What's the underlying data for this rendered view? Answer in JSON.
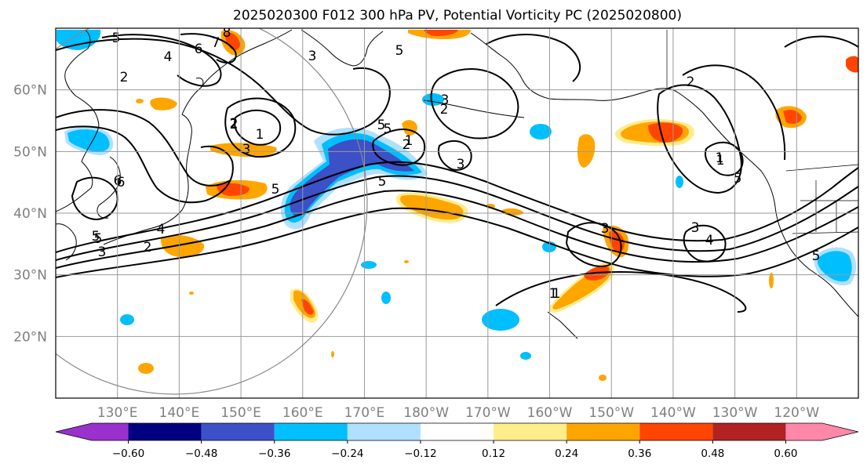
{
  "title": "2025020300 F012 300 hPa PV, Potential Vorticity PC (2025020800)",
  "map": {
    "lon_range": [
      120,
      250
    ],
    "lat_range": [
      10,
      70
    ],
    "lat_ticks": [
      {
        "value": 20,
        "label": "20°N"
      },
      {
        "value": 30,
        "label": "30°N"
      },
      {
        "value": 40,
        "label": "40°N"
      },
      {
        "value": 50,
        "label": "50°N"
      },
      {
        "value": 60,
        "label": "60°N"
      }
    ],
    "lon_ticks": [
      {
        "value": 130,
        "label": "130°E"
      },
      {
        "value": 140,
        "label": "140°E"
      },
      {
        "value": 150,
        "label": "150°E"
      },
      {
        "value": 160,
        "label": "160°E"
      },
      {
        "value": 170,
        "label": "170°E"
      },
      {
        "value": 180,
        "label": "180°W"
      },
      {
        "value": 190,
        "label": "170°W"
      },
      {
        "value": 200,
        "label": "160°W"
      },
      {
        "value": 210,
        "label": "150°W"
      },
      {
        "value": 220,
        "label": "140°W"
      },
      {
        "value": 230,
        "label": "130°W"
      },
      {
        "value": 240,
        "label": "120°W"
      }
    ],
    "gridlines": true
  },
  "colorbar": {
    "ticks": [
      "−0.60",
      "−0.48",
      "−0.36",
      "−0.24",
      "−0.12",
      "0.12",
      "0.24",
      "0.36",
      "0.48",
      "0.60"
    ],
    "colors": [
      "#9932cc",
      "#000080",
      "#3c50c8",
      "#00bfff",
      "#afe0ff",
      "#ffffff",
      "#ffec8b",
      "#ffa500",
      "#ff4500",
      "#b22222",
      "#ff88aa"
    ],
    "extend": "both"
  },
  "colors": {
    "strong_negative": "#3c50c8",
    "negative": "#00bfff",
    "weak_negative": "#afe0ff",
    "weak_positive": "#ffec8b",
    "positive": "#ffa500",
    "strong_positive": "#ff4500"
  },
  "contour_labels": [
    "8",
    "7",
    "6",
    "5",
    "4",
    "2",
    "3",
    "2",
    "1",
    "3",
    "5",
    "5",
    "5",
    "2",
    "3",
    "5",
    "6",
    "5",
    "4",
    "3",
    "2",
    "1",
    "2",
    "1",
    "3",
    "4",
    "3",
    "1",
    "2",
    "1",
    "3",
    "1",
    "5",
    "5",
    "5",
    "2",
    "1",
    "6",
    "5"
  ]
}
